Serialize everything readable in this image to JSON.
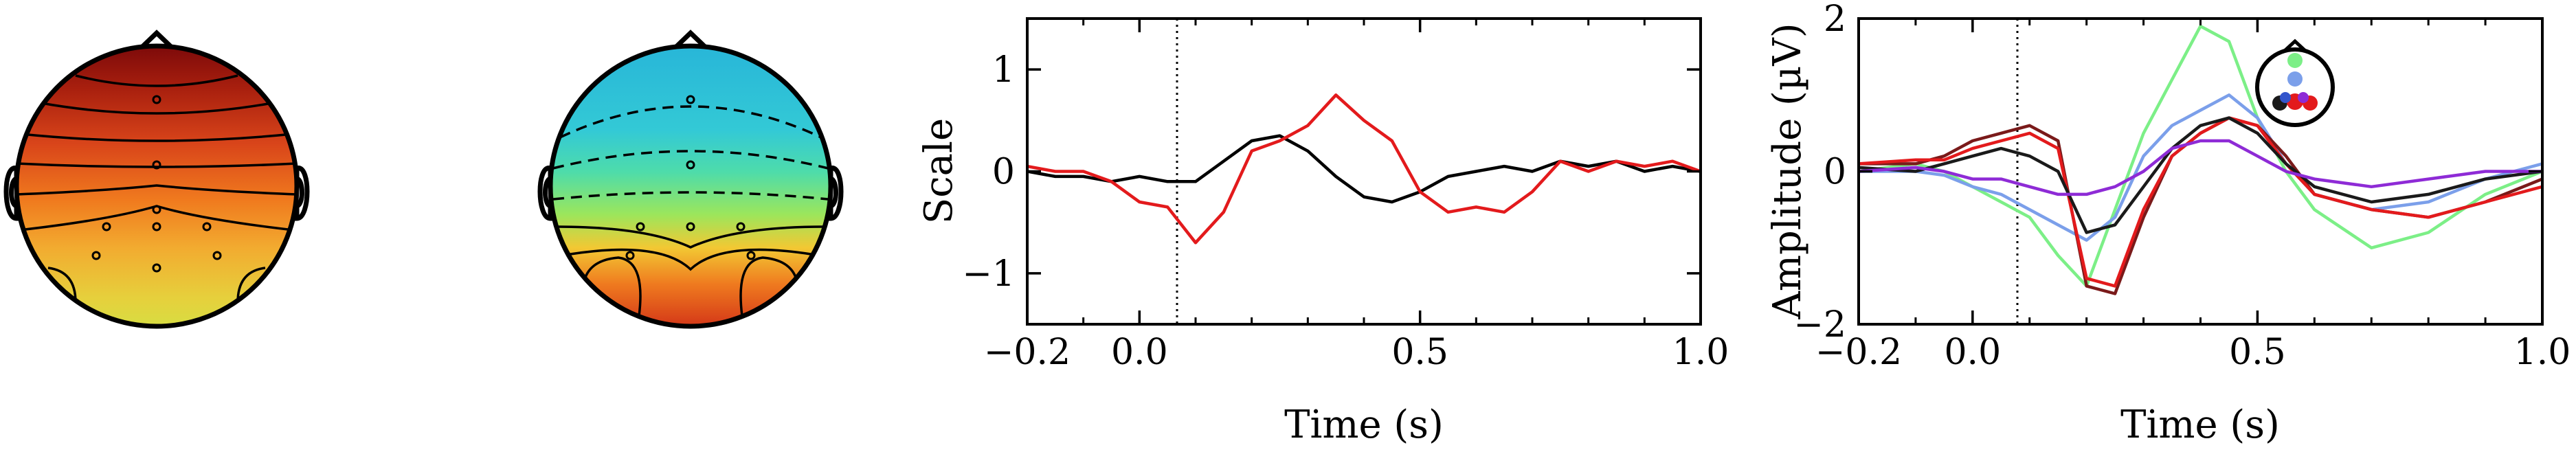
{
  "chart_data": [
    {
      "type": "heatmap",
      "subtype": "topomap",
      "colormap": "YlOrRd (dark red at top → yellow at bottom)",
      "sensor_count": 9,
      "contour_style": "solid"
    },
    {
      "type": "heatmap",
      "subtype": "topomap",
      "colormap": "blue/cyan at top → green → red at bottom",
      "sensor_count": 9,
      "contour_style": "dashed top, solid bottom"
    },
    {
      "type": "line",
      "xlabel": "Time (s)",
      "ylabel": "Scale",
      "xlim": [
        -0.2,
        1.0
      ],
      "ylim": [
        -1.5,
        1.5
      ],
      "xticks": [
        "−0.2",
        "0.0",
        "0.5",
        "1.0"
      ],
      "yticks": [
        "−1",
        "0",
        "1"
      ],
      "vline_at": 0.0,
      "series": [
        {
          "color": "#000000",
          "x": [
            -0.2,
            -0.15,
            -0.1,
            -0.05,
            0.0,
            0.05,
            0.1,
            0.15,
            0.2,
            0.25,
            0.3,
            0.35,
            0.4,
            0.45,
            0.5,
            0.55,
            0.6,
            0.65,
            0.7,
            0.75,
            0.8,
            0.85,
            0.9,
            0.95,
            1.0
          ],
          "y": [
            0.0,
            -0.05,
            -0.05,
            -0.1,
            -0.05,
            -0.1,
            -0.1,
            0.1,
            0.3,
            0.35,
            0.2,
            -0.05,
            -0.25,
            -0.3,
            -0.2,
            -0.05,
            0.0,
            0.05,
            0.0,
            0.1,
            0.05,
            0.1,
            0.0,
            0.05,
            0.0
          ]
        },
        {
          "color": "#e31a1c",
          "x": [
            -0.2,
            -0.15,
            -0.1,
            -0.05,
            0.0,
            0.05,
            0.1,
            0.15,
            0.2,
            0.25,
            0.3,
            0.35,
            0.4,
            0.45,
            0.5,
            0.55,
            0.6,
            0.65,
            0.7,
            0.75,
            0.8,
            0.85,
            0.9,
            0.95,
            1.0
          ],
          "y": [
            0.05,
            0.0,
            0.0,
            -0.1,
            -0.3,
            -0.35,
            -0.7,
            -0.4,
            0.2,
            0.3,
            0.45,
            0.75,
            0.5,
            0.3,
            -0.2,
            -0.4,
            -0.35,
            -0.4,
            -0.2,
            0.1,
            0.0,
            0.1,
            0.05,
            0.1,
            0.0
          ]
        }
      ]
    },
    {
      "type": "line",
      "xlabel": "Time (s)",
      "ylabel": "Amplitude (µV)",
      "xlim": [
        -0.2,
        1.0
      ],
      "ylim": [
        -2,
        2
      ],
      "xticks": [
        "−0.2",
        "0.0",
        "0.5",
        "1.0"
      ],
      "yticks": [
        "−2",
        "0",
        "2"
      ],
      "vline_at": 0.0,
      "inset": "sensor-position head with colored dots",
      "series": [
        {
          "color": "#7cef87",
          "x": [
            -0.2,
            -0.1,
            -0.05,
            0.0,
            0.05,
            0.1,
            0.15,
            0.2,
            0.25,
            0.3,
            0.35,
            0.4,
            0.45,
            0.5,
            0.55,
            0.6,
            0.7,
            0.8,
            0.9,
            1.0
          ],
          "y": [
            0.0,
            0.1,
            0.0,
            -0.2,
            -0.4,
            -0.6,
            -1.1,
            -1.5,
            -0.5,
            0.5,
            1.2,
            1.9,
            1.7,
            0.7,
            0.0,
            -0.5,
            -1.0,
            -0.8,
            -0.3,
            0.0
          ]
        },
        {
          "color": "#7b9fea",
          "x": [
            -0.2,
            -0.1,
            -0.05,
            0.0,
            0.05,
            0.1,
            0.15,
            0.2,
            0.25,
            0.3,
            0.35,
            0.4,
            0.45,
            0.5,
            0.55,
            0.6,
            0.7,
            0.8,
            0.9,
            1.0
          ],
          "y": [
            0.0,
            0.0,
            -0.05,
            -0.2,
            -0.3,
            -0.5,
            -0.7,
            -0.9,
            -0.6,
            0.2,
            0.6,
            0.8,
            1.0,
            0.7,
            0.1,
            -0.3,
            -0.5,
            -0.4,
            -0.1,
            0.1
          ]
        },
        {
          "color": "#7a1a1a",
          "x": [
            -0.2,
            -0.1,
            -0.05,
            0.0,
            0.05,
            0.1,
            0.15,
            0.2,
            0.25,
            0.3,
            0.35,
            0.4,
            0.45,
            0.5,
            0.55,
            0.6,
            0.7,
            0.8,
            0.9,
            1.0
          ],
          "y": [
            0.1,
            0.1,
            0.2,
            0.4,
            0.5,
            0.6,
            0.4,
            -1.5,
            -1.6,
            -0.6,
            0.2,
            0.5,
            0.7,
            0.6,
            0.2,
            -0.3,
            -0.5,
            -0.6,
            -0.4,
            -0.1
          ]
        },
        {
          "color": "#e31a1c",
          "x": [
            -0.2,
            -0.1,
            -0.05,
            0.0,
            0.05,
            0.1,
            0.15,
            0.2,
            0.25,
            0.3,
            0.35,
            0.4,
            0.45,
            0.5,
            0.55,
            0.6,
            0.7,
            0.8,
            0.9,
            1.0
          ],
          "y": [
            0.1,
            0.15,
            0.15,
            0.3,
            0.4,
            0.5,
            0.3,
            -1.4,
            -1.5,
            -0.5,
            0.2,
            0.5,
            0.7,
            0.6,
            0.1,
            -0.3,
            -0.5,
            -0.6,
            -0.4,
            -0.2
          ]
        },
        {
          "color": "#1a1a1a",
          "x": [
            -0.2,
            -0.1,
            -0.05,
            0.0,
            0.05,
            0.1,
            0.15,
            0.2,
            0.25,
            0.3,
            0.35,
            0.4,
            0.45,
            0.5,
            0.55,
            0.6,
            0.7,
            0.8,
            0.9,
            1.0
          ],
          "y": [
            0.05,
            0.0,
            0.1,
            0.2,
            0.3,
            0.2,
            0.0,
            -0.8,
            -0.7,
            -0.2,
            0.3,
            0.6,
            0.7,
            0.5,
            0.1,
            -0.2,
            -0.4,
            -0.3,
            -0.1,
            0.0
          ]
        },
        {
          "color": "#8e2bd6",
          "x": [
            -0.2,
            -0.1,
            -0.05,
            0.0,
            0.05,
            0.1,
            0.15,
            0.2,
            0.25,
            0.3,
            0.35,
            0.4,
            0.45,
            0.5,
            0.55,
            0.6,
            0.7,
            0.8,
            0.9,
            1.0
          ],
          "y": [
            0.0,
            0.05,
            0.0,
            -0.1,
            -0.1,
            -0.2,
            -0.3,
            -0.3,
            -0.2,
            0.0,
            0.3,
            0.4,
            0.4,
            0.2,
            0.0,
            -0.1,
            -0.2,
            -0.1,
            0.0,
            0.0
          ]
        }
      ]
    }
  ]
}
